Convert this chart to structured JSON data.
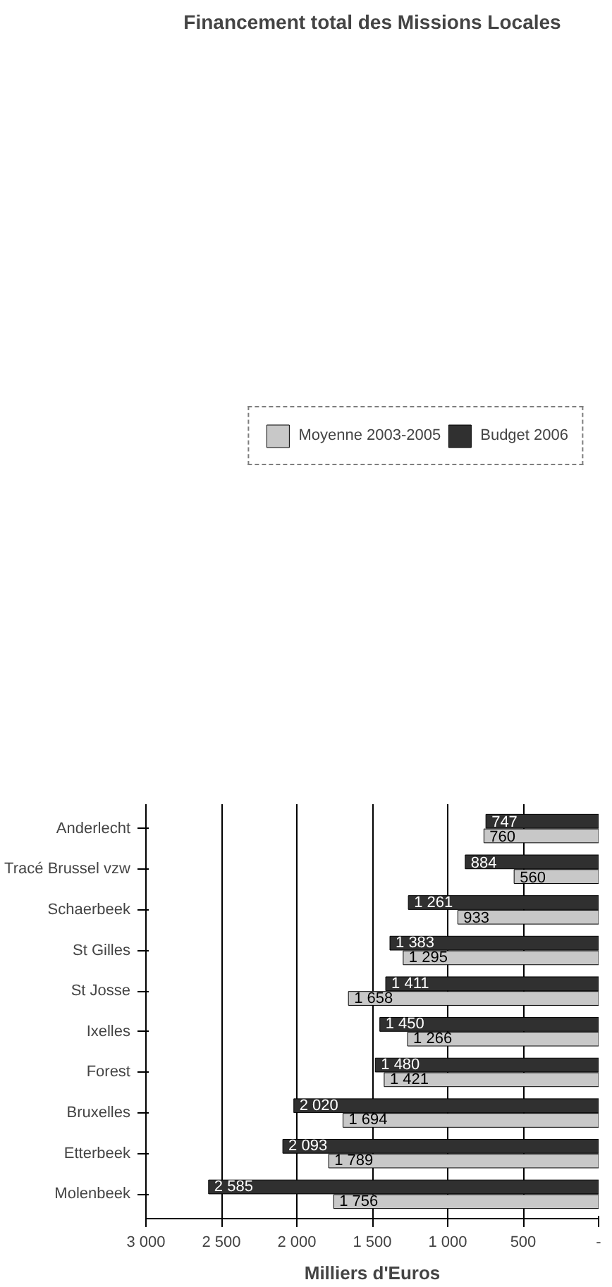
{
  "chart_data": {
    "type": "bar",
    "orientation": "horizontal",
    "title": "Financement total des Missions Locales",
    "xlabel": "Milliers d'Euros",
    "categories": [
      "Anderlecht",
      "Tracé Brussel vzw",
      "Schaerbeek",
      "St Gilles",
      "St Josse",
      "Ixelles",
      "Forest",
      "Bruxelles",
      "Etterbeek",
      "Molenbeek"
    ],
    "series": [
      {
        "name": "Moyenne 2003-2005",
        "color": "#c8c8c8",
        "values": [
          760,
          560,
          933,
          1295,
          1658,
          1266,
          1421,
          1694,
          1789,
          1756
        ],
        "value_labels": [
          "760",
          "560",
          "933",
          "1 295",
          "1 658",
          "1 266",
          "1 421",
          "1 694",
          "1 789",
          "1 756"
        ]
      },
      {
        "name": "Budget 2006",
        "color": "#303030",
        "values": [
          747,
          884,
          1261,
          1383,
          1411,
          1450,
          1480,
          2020,
          2093,
          2585
        ],
        "value_labels": [
          "747",
          "884",
          "1 261",
          "1 383",
          "1 411",
          "1 450",
          "1 480",
          "2 020",
          "2 093",
          "2 585"
        ]
      }
    ],
    "xlim": [
      3000,
      0
    ],
    "xticks": [
      {
        "value": 0,
        "label": "-"
      },
      500,
      {
        "value": 1000,
        "label": "1 000"
      },
      {
        "value": 1500,
        "label": "1 500"
      },
      {
        "value": 2000,
        "label": "2 000"
      },
      {
        "value": 2500,
        "label": "2 500"
      },
      {
        "value": 3000,
        "label": "3 000"
      }
    ],
    "grid": "x",
    "legend": "top"
  }
}
